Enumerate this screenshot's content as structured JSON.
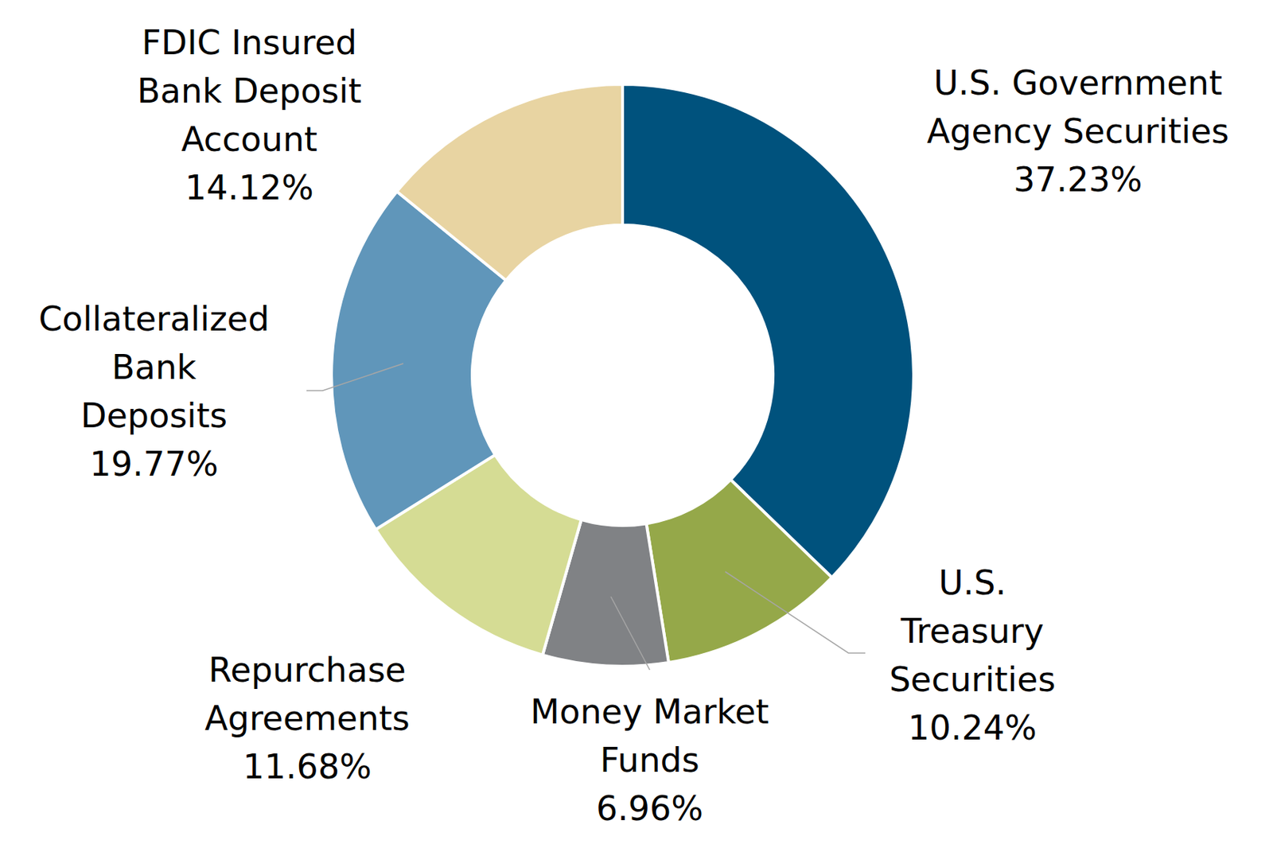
{
  "chart_data": {
    "type": "donut",
    "categories": [
      "U.S. Government Agency Securities",
      "U.S. Treasury Securities",
      "Money Market Funds",
      "Repurchase Agreements",
      "Collateralized Bank Deposits",
      "FDIC Insured Bank Deposit Account"
    ],
    "values": [
      37.23,
      10.24,
      6.96,
      11.68,
      19.77,
      14.12
    ],
    "value_labels": [
      "37.23%",
      "10.24%",
      "6.96%",
      "11.68%",
      "19.77%",
      "14.12%"
    ],
    "colors": [
      "#00527d",
      "#95a849",
      "#808285",
      "#d5dc94",
      "#6096ba",
      "#e8d4a2"
    ],
    "data_labels": true
  }
}
